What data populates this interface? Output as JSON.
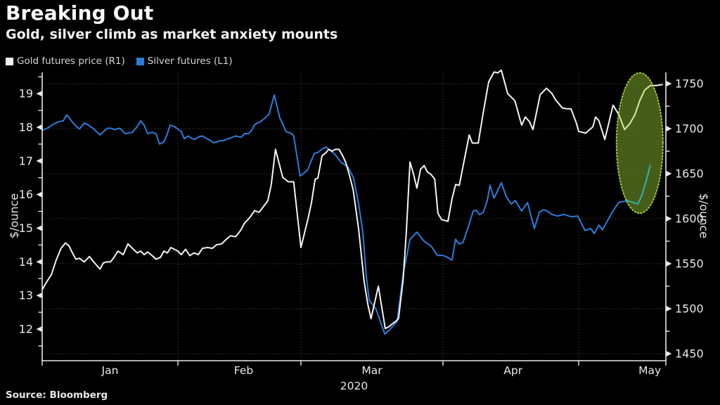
{
  "header": {
    "title": "Breaking Out",
    "subtitle": "Gold, silver climb as market anxiety mounts"
  },
  "legend": [
    {
      "label": "Gold futures price (R1)",
      "color": "#f2f2f2"
    },
    {
      "label": "Silver futures (L1)",
      "color": "#2d7dd9"
    }
  ],
  "source": "Source:  Bloomberg",
  "chart_data": {
    "type": "line",
    "title": "Breaking Out",
    "subtitle": "Gold, silver climb as market anxiety mounts",
    "background": "#000000",
    "grid": "dotted",
    "x_axis": {
      "year": "2020",
      "start": "Jan 1, 2020",
      "months": [
        {
          "label": "Jan",
          "days": 31
        },
        {
          "label": "Feb",
          "days": 29
        },
        {
          "label": "Mar",
          "days": 31
        },
        {
          "label": "Apr",
          "days": 30
        },
        {
          "label": "May",
          "days": 31
        }
      ]
    },
    "left_axis": {
      "title": "$/ounce",
      "series": "Silver futures (L1)",
      "ticks": [
        12,
        13,
        14,
        15,
        16,
        17,
        18,
        19
      ],
      "minor_step": 0.5,
      "min": 11.06,
      "max": 19.63
    },
    "right_axis": {
      "title": "$/ounce",
      "series": "Gold futures price (R1)",
      "ticks": [
        1450,
        1500,
        1550,
        1600,
        1650,
        1700,
        1750
      ],
      "minor_step": 25,
      "min": 1442.2,
      "max": 1762.5
    },
    "series": [
      {
        "name": "Gold futures price (R1)",
        "axis": "right",
        "color": "#f4f4f4",
        "points": [
          [
            0,
            1521
          ],
          [
            0.8,
            1528
          ],
          [
            2.1,
            1538
          ],
          [
            3.2,
            1554
          ],
          [
            4.3,
            1567
          ],
          [
            5.3,
            1573
          ],
          [
            6.1,
            1570
          ],
          [
            6.9,
            1562
          ],
          [
            7.7,
            1555
          ],
          [
            8.5,
            1556
          ],
          [
            9.6,
            1552
          ],
          [
            10.8,
            1558
          ],
          [
            11.6,
            1553
          ],
          [
            12.5,
            1548
          ],
          [
            13.2,
            1544
          ],
          [
            14,
            1551
          ],
          [
            14.8,
            1552
          ],
          [
            15.6,
            1552
          ],
          [
            16.4,
            1557
          ],
          [
            17.3,
            1564
          ],
          [
            18.5,
            1560
          ],
          [
            19.6,
            1572
          ],
          [
            20.6,
            1567
          ],
          [
            21.7,
            1562
          ],
          [
            22.5,
            1564
          ],
          [
            23.3,
            1560
          ],
          [
            24.1,
            1563
          ],
          [
            25.1,
            1559
          ],
          [
            26,
            1555
          ],
          [
            27,
            1557
          ],
          [
            27.8,
            1564
          ],
          [
            28.6,
            1562
          ],
          [
            29.4,
            1568
          ],
          [
            30.2,
            1566
          ],
          [
            31,
            1564
          ],
          [
            31.8,
            1560
          ],
          [
            32.8,
            1566
          ],
          [
            33.8,
            1559
          ],
          [
            34.8,
            1562
          ],
          [
            35.8,
            1560
          ],
          [
            36.8,
            1567
          ],
          [
            38,
            1568
          ],
          [
            39.1,
            1567
          ],
          [
            40.1,
            1571
          ],
          [
            41.3,
            1572
          ],
          [
            42.4,
            1577
          ],
          [
            43.4,
            1581
          ],
          [
            44.6,
            1580
          ],
          [
            45.8,
            1587
          ],
          [
            46.7,
            1595
          ],
          [
            47.9,
            1601
          ],
          [
            49.1,
            1609
          ],
          [
            50.1,
            1607
          ],
          [
            51.1,
            1613
          ],
          [
            52.2,
            1620
          ],
          [
            53,
            1638
          ],
          [
            54,
            1677
          ],
          [
            55.7,
            1646
          ],
          [
            57,
            1641
          ],
          [
            58.3,
            1641
          ],
          [
            60,
            1568
          ],
          [
            61.5,
            1599
          ],
          [
            62.3,
            1618
          ],
          [
            63.1,
            1644
          ],
          [
            63.7,
            1645
          ],
          [
            64.6,
            1670
          ],
          [
            65.4,
            1673
          ],
          [
            66.1,
            1677
          ],
          [
            66.8,
            1675
          ],
          [
            67.5,
            1677
          ],
          [
            68.3,
            1677
          ],
          [
            69.1,
            1670
          ],
          [
            69.8,
            1662
          ],
          [
            70.6,
            1648
          ],
          [
            71.4,
            1632
          ],
          [
            72.6,
            1588
          ],
          [
            73.8,
            1530
          ],
          [
            74.6,
            1505
          ],
          [
            75.3,
            1489
          ],
          [
            76.9,
            1525
          ],
          [
            78.4,
            1478
          ],
          [
            79.2,
            1480
          ],
          [
            79.9,
            1483
          ],
          [
            80.7,
            1486
          ],
          [
            81.3,
            1489
          ],
          [
            82.3,
            1532
          ],
          [
            83,
            1585
          ],
          [
            83.8,
            1663
          ],
          [
            84.6,
            1649
          ],
          [
            85.3,
            1634
          ],
          [
            86.1,
            1655
          ],
          [
            86.9,
            1659
          ],
          [
            87.6,
            1652
          ],
          [
            88.4,
            1649
          ],
          [
            89.2,
            1644
          ],
          [
            89.9,
            1606
          ],
          [
            90.7,
            1599
          ],
          [
            92.1,
            1597
          ],
          [
            93,
            1622
          ],
          [
            93.8,
            1638
          ],
          [
            94.6,
            1637
          ],
          [
            96.8,
            1693
          ],
          [
            97.5,
            1684
          ],
          [
            98.8,
            1684
          ],
          [
            99.9,
            1718
          ],
          [
            101.1,
            1752
          ],
          [
            102.3,
            1763
          ],
          [
            103.1,
            1762
          ],
          [
            103.9,
            1765
          ],
          [
            105.3,
            1739
          ],
          [
            106.1,
            1735
          ],
          [
            106.9,
            1731
          ],
          [
            108.4,
            1704
          ],
          [
            109.2,
            1713
          ],
          [
            110.1,
            1708
          ],
          [
            110.9,
            1699
          ],
          [
            112.5,
            1738
          ],
          [
            113.9,
            1745
          ],
          [
            115.1,
            1739
          ],
          [
            115.9,
            1732
          ],
          [
            117.4,
            1723
          ],
          [
            118.5,
            1722
          ],
          [
            119.3,
            1722
          ],
          [
            120.5,
            1706
          ],
          [
            121,
            1697
          ],
          [
            122.5,
            1695
          ],
          [
            124.1,
            1702
          ],
          [
            124.7,
            1713
          ],
          [
            125.4,
            1709
          ],
          [
            126.7,
            1688
          ],
          [
            128.5,
            1726
          ],
          [
            129.7,
            1716
          ],
          [
            131,
            1699
          ],
          [
            132.2,
            1706
          ],
          [
            133.3,
            1716
          ],
          [
            134.3,
            1731
          ],
          [
            135.4,
            1743
          ],
          [
            136.6,
            1748
          ],
          [
            138,
            1748
          ],
          [
            139.2,
            1749
          ]
        ]
      },
      {
        "name": "Silver futures (L1)",
        "axis": "left",
        "color": "#2d7dd9",
        "points": [
          [
            0,
            17.91
          ],
          [
            1.3,
            17.98
          ],
          [
            2.4,
            18.08
          ],
          [
            3.7,
            18.16
          ],
          [
            4.8,
            18.19
          ],
          [
            5.6,
            18.37
          ],
          [
            6.7,
            18.19
          ],
          [
            7.5,
            18.06
          ],
          [
            8.5,
            17.95
          ],
          [
            9.6,
            18.12
          ],
          [
            10.4,
            18.08
          ],
          [
            11.6,
            17.97
          ],
          [
            13.2,
            17.77
          ],
          [
            14,
            17.87
          ],
          [
            14.9,
            17.97
          ],
          [
            15.7,
            17.97
          ],
          [
            16.5,
            17.93
          ],
          [
            17.7,
            17.97
          ],
          [
            19,
            17.81
          ],
          [
            20.6,
            17.85
          ],
          [
            21.7,
            18.02
          ],
          [
            22.5,
            18.19
          ],
          [
            23.3,
            18.06
          ],
          [
            24.1,
            17.81
          ],
          [
            25.1,
            17.85
          ],
          [
            26,
            17.81
          ],
          [
            26.8,
            17.5
          ],
          [
            27.8,
            17.56
          ],
          [
            28.6,
            17.81
          ],
          [
            29.2,
            18.06
          ],
          [
            30.2,
            18.02
          ],
          [
            31,
            17.95
          ],
          [
            31.8,
            17.87
          ],
          [
            32.5,
            17.66
          ],
          [
            33.5,
            17.74
          ],
          [
            34.1,
            17.68
          ],
          [
            35,
            17.64
          ],
          [
            36,
            17.72
          ],
          [
            36.8,
            17.74
          ],
          [
            37.8,
            17.66
          ],
          [
            38.5,
            17.62
          ],
          [
            39.3,
            17.54
          ],
          [
            40.1,
            17.56
          ],
          [
            40.9,
            17.6
          ],
          [
            41.8,
            17.6
          ],
          [
            42.9,
            17.66
          ],
          [
            43.8,
            17.7
          ],
          [
            44.6,
            17.74
          ],
          [
            45.9,
            17.7
          ],
          [
            46.7,
            17.81
          ],
          [
            47.6,
            17.81
          ],
          [
            48.4,
            17.91
          ],
          [
            49.1,
            18.08
          ],
          [
            49.7,
            18.12
          ],
          [
            50.4,
            18.16
          ],
          [
            51.7,
            18.29
          ],
          [
            52.5,
            18.39
          ],
          [
            53.7,
            18.96
          ],
          [
            55,
            18.29
          ],
          [
            56.5,
            17.87
          ],
          [
            57.9,
            17.81
          ],
          [
            58.3,
            17.74
          ],
          [
            59.8,
            16.55
          ],
          [
            61.4,
            16.72
          ],
          [
            62.9,
            17.22
          ],
          [
            63.7,
            17.25
          ],
          [
            64.6,
            17.35
          ],
          [
            65.4,
            17.41
          ],
          [
            66.1,
            17.35
          ],
          [
            67.5,
            17.18
          ],
          [
            68.7,
            16.97
          ],
          [
            70.3,
            16.81
          ],
          [
            71.5,
            16.49
          ],
          [
            72.6,
            15.72
          ],
          [
            73.5,
            14.88
          ],
          [
            74.3,
            13.53
          ],
          [
            74.9,
            12.86
          ],
          [
            76.4,
            12.59
          ],
          [
            78.3,
            11.85
          ],
          [
            79.5,
            12
          ],
          [
            81,
            12.23
          ],
          [
            82.3,
            13.63
          ],
          [
            83.8,
            14.67
          ],
          [
            85.3,
            14.88
          ],
          [
            86.9,
            14.61
          ],
          [
            88.4,
            14.47
          ],
          [
            89.8,
            14.19
          ],
          [
            91,
            14.19
          ],
          [
            91.8,
            14.15
          ],
          [
            93,
            14.05
          ],
          [
            93.8,
            14.67
          ],
          [
            94.6,
            14.53
          ],
          [
            95.4,
            14.57
          ],
          [
            96.2,
            14.88
          ],
          [
            97.7,
            15.51
          ],
          [
            98.3,
            15.53
          ],
          [
            99.1,
            15.4
          ],
          [
            99.9,
            15.47
          ],
          [
            100.8,
            15.82
          ],
          [
            101.4,
            16.28
          ],
          [
            102.3,
            15.89
          ],
          [
            103.9,
            16.35
          ],
          [
            105,
            15.93
          ],
          [
            106.1,
            15.72
          ],
          [
            107,
            15.82
          ],
          [
            108.4,
            15.51
          ],
          [
            109.7,
            15.76
          ],
          [
            111.2,
            14.99
          ],
          [
            112.3,
            15.47
          ],
          [
            113.2,
            15.55
          ],
          [
            114,
            15.51
          ],
          [
            115.1,
            15.41
          ],
          [
            116.3,
            15.36
          ],
          [
            117.7,
            15.41
          ],
          [
            119.3,
            15.34
          ],
          [
            120.8,
            15.36
          ],
          [
            122.4,
            14.93
          ],
          [
            123.6,
            14.99
          ],
          [
            124.4,
            14.84
          ],
          [
            125.4,
            15.09
          ],
          [
            126.2,
            14.95
          ],
          [
            128.2,
            15.45
          ],
          [
            129.7,
            15.76
          ],
          [
            131.6,
            15.82
          ],
          [
            133.9,
            15.72
          ],
          [
            134.8,
            15.99
          ],
          [
            135.9,
            16.49
          ],
          [
            136.6,
            16.87
          ]
        ]
      }
    ],
    "annotation": {
      "shape": "ellipse",
      "meaning": "highlight of recent breakout in gold and silver",
      "center_doy": 134.3,
      "rx_days": 5.06,
      "center_value_right": 1684,
      "ry_value_right": 78,
      "fill": "#55711f",
      "fill_opacity": 0.82,
      "stroke": "#a7cb3a",
      "series_tint": {
        "gold": "#d5e79b",
        "silver": "#2eb3a4"
      }
    },
    "legend_position": "top-left"
  }
}
